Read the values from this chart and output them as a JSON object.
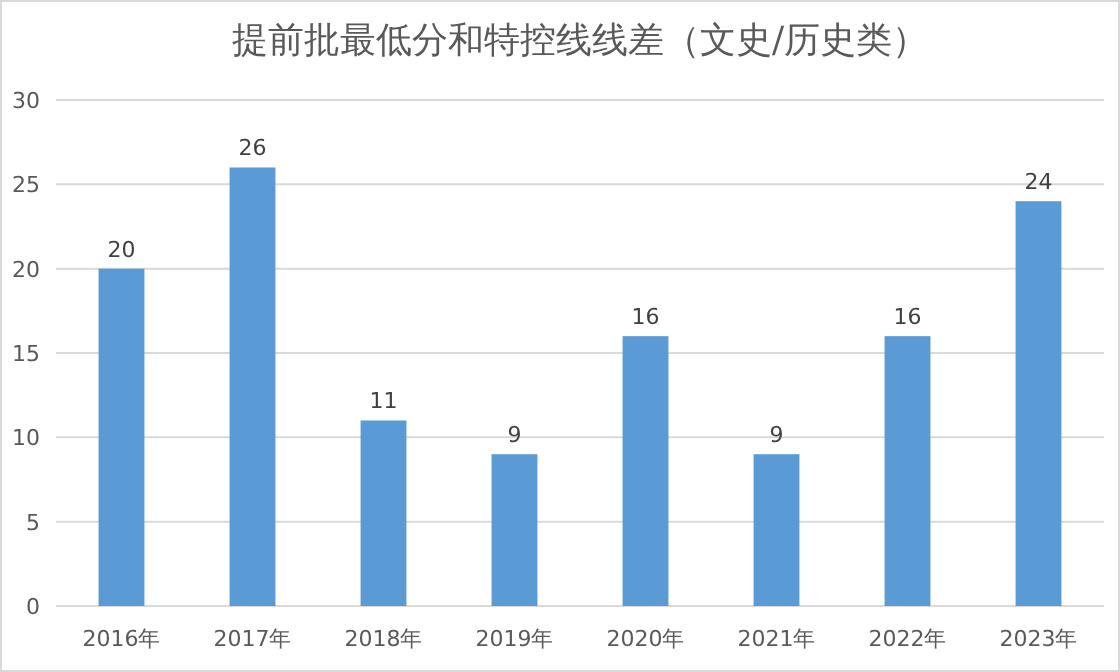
{
  "chart_data": {
    "type": "bar",
    "title": "提前批最低分和特控线线差（文史/历史类）",
    "categories": [
      "2016年",
      "2017年",
      "2018年",
      "2019年",
      "2020年",
      "2021年",
      "2022年",
      "2023年"
    ],
    "values": [
      20,
      26,
      11,
      9,
      16,
      9,
      16,
      24
    ],
    "color": "#5b9bd5",
    "ylim": [
      0,
      30
    ],
    "yticks": [
      0,
      5,
      10,
      15,
      20,
      25,
      30
    ],
    "grid": "y",
    "data_labels": true
  }
}
